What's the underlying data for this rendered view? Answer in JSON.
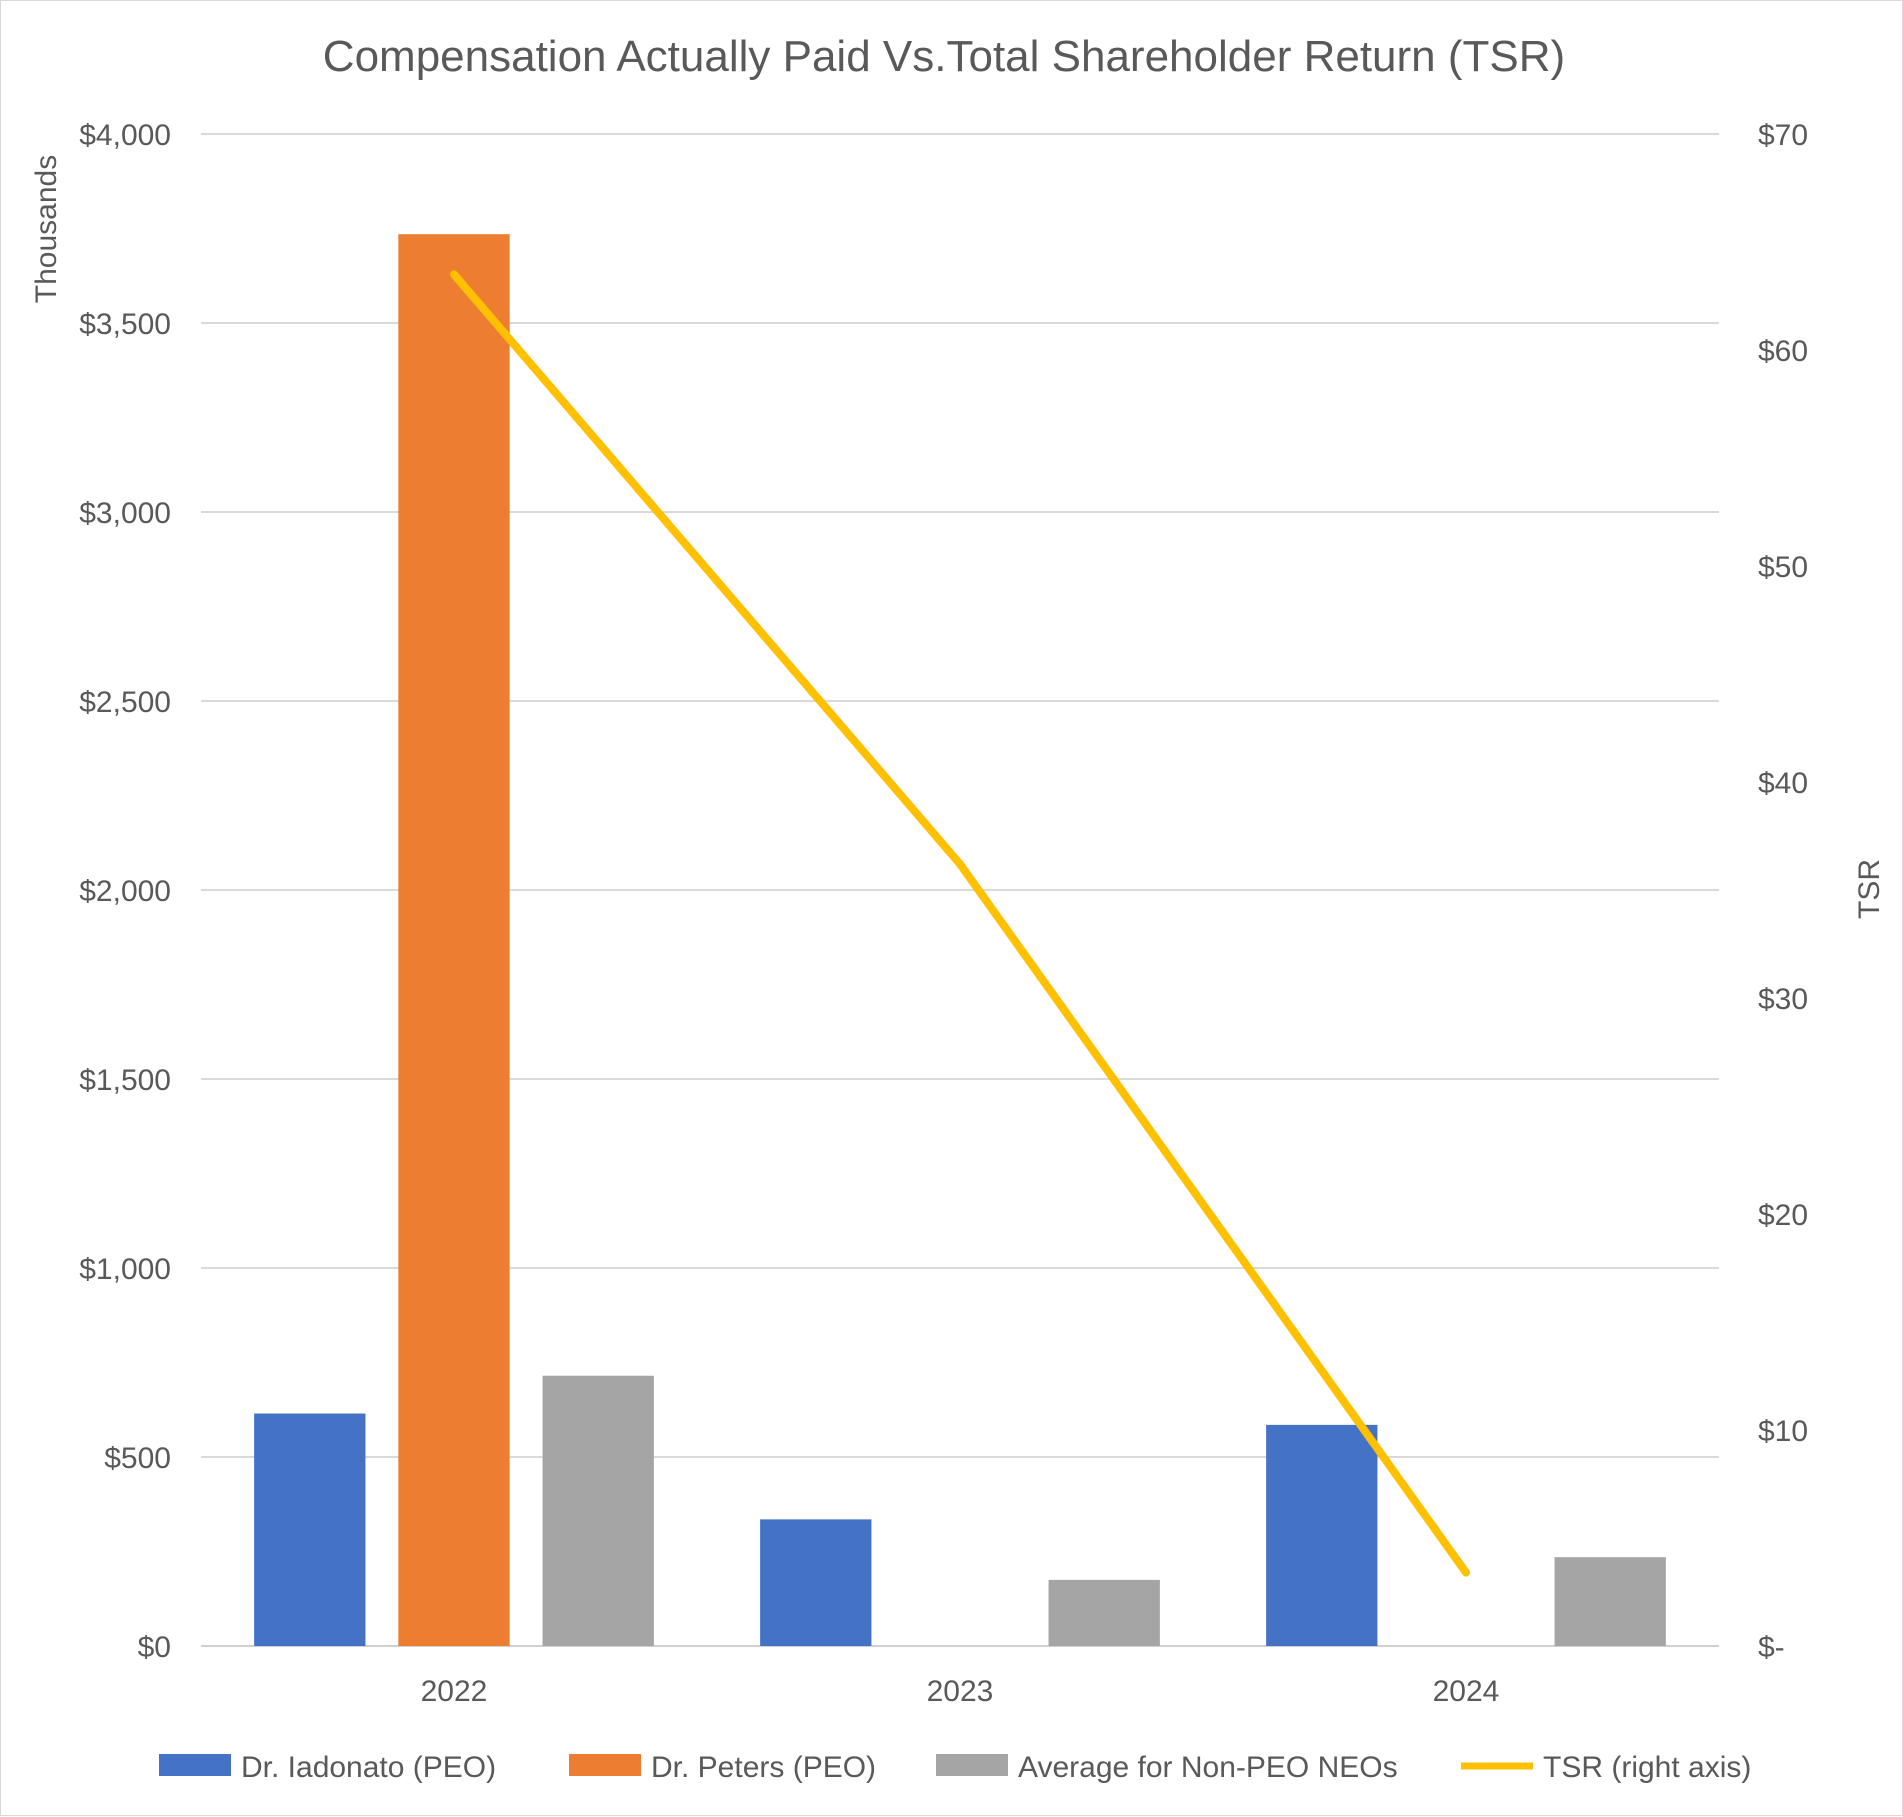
{
  "chart_data": {
    "type": "bar+line",
    "title": "Compensation Actually Paid Vs.Total Shareholder Return (TSR)",
    "categories": [
      "2022",
      "2023",
      "2024"
    ],
    "left_axis": {
      "label": "Thousands",
      "ylim": [
        0,
        4000
      ],
      "ticks": [
        0,
        500,
        1000,
        1500,
        2000,
        2500,
        3000,
        3500,
        4000
      ],
      "tick_labels": [
        "$0",
        "$500",
        "$1,000",
        "$1,500",
        "$2,000",
        "$2,500",
        "$3,000",
        "$3,500",
        "$4,000"
      ]
    },
    "right_axis": {
      "label": "TSR",
      "ylim": [
        0,
        70
      ],
      "ticks": [
        0,
        10,
        20,
        30,
        40,
        50,
        60,
        70
      ],
      "tick_labels": [
        "$-",
        "$10",
        "$20",
        "$30",
        "$40",
        "$50",
        "$60",
        "$70"
      ]
    },
    "bar_series": [
      {
        "name": "Dr. Iadonato (PEO)",
        "color": "#4472c4",
        "values": [
          615,
          335,
          585
        ]
      },
      {
        "name": "Dr. Peters (PEO)",
        "color": "#ed7d31",
        "values": [
          3735,
          null,
          null
        ]
      },
      {
        "name": "Average for Non-PEO NEOs",
        "color": "#a5a5a5",
        "values": [
          715,
          175,
          235
        ]
      }
    ],
    "line_series": [
      {
        "name": "TSR (right axis)",
        "color": "#ffc000",
        "values": [
          63.5,
          36.2,
          3.4
        ]
      }
    ],
    "grid": true,
    "legend_position": "bottom"
  }
}
